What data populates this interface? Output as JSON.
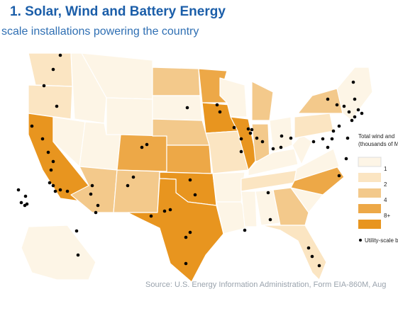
{
  "header": {
    "title": "1. Solar, Wind and Battery Energy",
    "subtitle": "scale installations powering the country"
  },
  "legend": {
    "title_lines": [
      "Total wind and",
      "(thousands of M"
    ],
    "labels": [
      "1",
      "2",
      "4",
      "8+"
    ],
    "dot_label": "Utility-scale b"
  },
  "source": "Source: U.S. Energy Information Administration, Form EIA-860M, Aug"
}
